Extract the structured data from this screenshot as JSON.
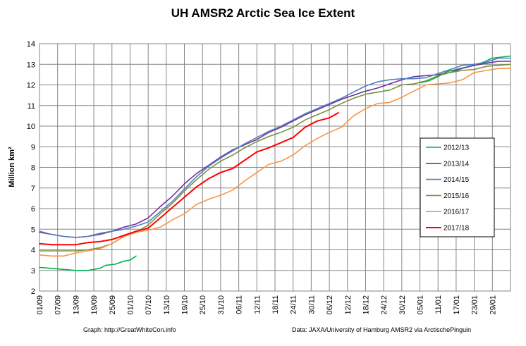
{
  "chart_data": {
    "type": "line",
    "title": "UH AMSR2 Arctic Sea Ice Extent",
    "ylabel": "Million km²",
    "xlabel": "",
    "ylim": [
      2,
      14
    ],
    "yticks": [
      2,
      3,
      4,
      5,
      6,
      7,
      8,
      9,
      10,
      11,
      12,
      13,
      14
    ],
    "xlim": [
      0,
      156
    ],
    "xtick_positions": [
      0,
      6,
      12,
      18,
      24,
      30,
      36,
      42,
      48,
      54,
      60,
      66,
      72,
      78,
      84,
      90,
      96,
      102,
      108,
      114,
      120,
      126,
      132,
      138,
      144,
      150,
      156
    ],
    "xtick_labels": [
      "01/09",
      "07/09",
      "13/09",
      "19/09",
      "25/09",
      "01/10",
      "07/10",
      "13/10",
      "19/10",
      "25/10",
      "31/10",
      "06/11",
      "12/11",
      "18/11",
      "24/11",
      "30/11",
      "06/12",
      "12/12",
      "18/12",
      "24/12",
      "30/12",
      "05/01",
      "11/01",
      "17/01",
      "23/01",
      "29/01",
      ""
    ],
    "grid": true,
    "legend_position": "right",
    "series": [
      {
        "name": "2012/13",
        "color": "#00b050",
        "points": [
          [
            0,
            3.15
          ],
          [
            4,
            3.1
          ],
          [
            8,
            3.05
          ],
          [
            12,
            3.0
          ],
          [
            16,
            3.0
          ],
          [
            20,
            3.1
          ],
          [
            22,
            3.25
          ],
          [
            25,
            3.3
          ],
          [
            28,
            3.45
          ],
          [
            30,
            3.5
          ],
          [
            32,
            3.7
          ],
          [
            null,
            null
          ],
          [
            126,
            12.1
          ],
          [
            129,
            12.2
          ],
          [
            132,
            12.4
          ],
          [
            135,
            12.65
          ],
          [
            138,
            12.75
          ],
          [
            141,
            12.85
          ],
          [
            144,
            12.95
          ],
          [
            147,
            13.1
          ],
          [
            150,
            13.3
          ],
          [
            153,
            13.35
          ],
          [
            156,
            13.4
          ]
        ]
      },
      {
        "name": "2013/14",
        "color": "#7030a0",
        "points": [
          [
            0,
            4.85
          ],
          [
            4,
            4.75
          ],
          [
            8,
            4.65
          ],
          [
            12,
            4.6
          ],
          [
            16,
            4.65
          ],
          [
            20,
            4.75
          ],
          [
            24,
            4.9
          ],
          [
            28,
            5.1
          ],
          [
            32,
            5.25
          ],
          [
            36,
            5.55
          ],
          [
            40,
            6.1
          ],
          [
            44,
            6.6
          ],
          [
            48,
            7.2
          ],
          [
            52,
            7.7
          ],
          [
            56,
            8.1
          ],
          [
            60,
            8.5
          ],
          [
            64,
            8.85
          ],
          [
            68,
            9.1
          ],
          [
            72,
            9.35
          ],
          [
            76,
            9.7
          ],
          [
            80,
            9.95
          ],
          [
            84,
            10.25
          ],
          [
            88,
            10.55
          ],
          [
            92,
            10.8
          ],
          [
            96,
            11.05
          ],
          [
            100,
            11.3
          ],
          [
            104,
            11.5
          ],
          [
            108,
            11.7
          ],
          [
            112,
            11.85
          ],
          [
            116,
            12.05
          ],
          [
            120,
            12.25
          ],
          [
            124,
            12.4
          ],
          [
            128,
            12.45
          ],
          [
            132,
            12.5
          ],
          [
            136,
            12.6
          ],
          [
            140,
            12.8
          ],
          [
            144,
            12.95
          ],
          [
            148,
            13.05
          ],
          [
            152,
            13.15
          ],
          [
            156,
            13.15
          ]
        ]
      },
      {
        "name": "2014/15",
        "color": "#4f81bd",
        "points": [
          [
            0,
            4.9
          ],
          [
            4,
            4.75
          ],
          [
            8,
            4.65
          ],
          [
            12,
            4.6
          ],
          [
            16,
            4.65
          ],
          [
            20,
            4.8
          ],
          [
            24,
            4.9
          ],
          [
            28,
            5.0
          ],
          [
            32,
            5.15
          ],
          [
            36,
            5.35
          ],
          [
            40,
            5.85
          ],
          [
            44,
            6.35
          ],
          [
            48,
            6.95
          ],
          [
            52,
            7.55
          ],
          [
            56,
            8.05
          ],
          [
            60,
            8.45
          ],
          [
            64,
            8.8
          ],
          [
            68,
            9.15
          ],
          [
            72,
            9.45
          ],
          [
            76,
            9.75
          ],
          [
            80,
            10.0
          ],
          [
            84,
            10.3
          ],
          [
            88,
            10.6
          ],
          [
            92,
            10.85
          ],
          [
            96,
            11.1
          ],
          [
            100,
            11.35
          ],
          [
            104,
            11.65
          ],
          [
            108,
            11.95
          ],
          [
            112,
            12.15
          ],
          [
            116,
            12.25
          ],
          [
            120,
            12.3
          ],
          [
            124,
            12.3
          ],
          [
            128,
            12.35
          ],
          [
            132,
            12.55
          ],
          [
            136,
            12.75
          ],
          [
            140,
            12.95
          ],
          [
            144,
            13.0
          ],
          [
            148,
            13.1
          ],
          [
            152,
            13.3
          ],
          [
            156,
            13.3
          ]
        ]
      },
      {
        "name": "2015/16",
        "color": "#77933c",
        "points": [
          [
            0,
            3.95
          ],
          [
            4,
            3.95
          ],
          [
            8,
            3.95
          ],
          [
            12,
            3.95
          ],
          [
            16,
            4.0
          ],
          [
            20,
            4.1
          ],
          [
            24,
            4.3
          ],
          [
            28,
            4.65
          ],
          [
            32,
            4.85
          ],
          [
            36,
            5.2
          ],
          [
            40,
            5.75
          ],
          [
            44,
            6.25
          ],
          [
            48,
            6.85
          ],
          [
            52,
            7.4
          ],
          [
            56,
            7.9
          ],
          [
            60,
            8.3
          ],
          [
            64,
            8.6
          ],
          [
            68,
            8.95
          ],
          [
            72,
            9.25
          ],
          [
            76,
            9.5
          ],
          [
            80,
            9.7
          ],
          [
            84,
            9.95
          ],
          [
            88,
            10.3
          ],
          [
            92,
            10.55
          ],
          [
            96,
            10.8
          ],
          [
            100,
            11.1
          ],
          [
            104,
            11.35
          ],
          [
            108,
            11.55
          ],
          [
            112,
            11.65
          ],
          [
            116,
            11.75
          ],
          [
            120,
            12.0
          ],
          [
            124,
            12.05
          ],
          [
            128,
            12.2
          ],
          [
            132,
            12.45
          ],
          [
            136,
            12.6
          ],
          [
            140,
            12.7
          ],
          [
            144,
            12.75
          ],
          [
            148,
            12.9
          ],
          [
            152,
            12.95
          ],
          [
            156,
            13.0
          ]
        ]
      },
      {
        "name": "2016/17",
        "color": "#f79646",
        "points": [
          [
            0,
            3.75
          ],
          [
            4,
            3.7
          ],
          [
            8,
            3.7
          ],
          [
            12,
            3.85
          ],
          [
            16,
            3.95
          ],
          [
            20,
            4.05
          ],
          [
            24,
            4.3
          ],
          [
            28,
            4.65
          ],
          [
            32,
            4.85
          ],
          [
            36,
            4.95
          ],
          [
            40,
            5.1
          ],
          [
            44,
            5.45
          ],
          [
            48,
            5.75
          ],
          [
            52,
            6.2
          ],
          [
            56,
            6.45
          ],
          [
            60,
            6.65
          ],
          [
            64,
            6.9
          ],
          [
            68,
            7.35
          ],
          [
            72,
            7.75
          ],
          [
            76,
            8.15
          ],
          [
            80,
            8.3
          ],
          [
            84,
            8.6
          ],
          [
            88,
            9.05
          ],
          [
            92,
            9.4
          ],
          [
            96,
            9.7
          ],
          [
            100,
            9.95
          ],
          [
            104,
            10.5
          ],
          [
            108,
            10.85
          ],
          [
            112,
            11.1
          ],
          [
            116,
            11.15
          ],
          [
            120,
            11.4
          ],
          [
            124,
            11.7
          ],
          [
            128,
            12.0
          ],
          [
            132,
            12.05
          ],
          [
            136,
            12.1
          ],
          [
            140,
            12.25
          ],
          [
            144,
            12.6
          ],
          [
            148,
            12.7
          ],
          [
            152,
            12.8
          ],
          [
            156,
            12.8
          ]
        ]
      },
      {
        "name": "2017/18",
        "color": "#ff0000",
        "points": [
          [
            0,
            4.3
          ],
          [
            4,
            4.25
          ],
          [
            8,
            4.25
          ],
          [
            12,
            4.25
          ],
          [
            16,
            4.35
          ],
          [
            20,
            4.4
          ],
          [
            24,
            4.5
          ],
          [
            28,
            4.7
          ],
          [
            32,
            4.9
          ],
          [
            36,
            5.05
          ],
          [
            40,
            5.55
          ],
          [
            44,
            6.05
          ],
          [
            48,
            6.55
          ],
          [
            52,
            7.05
          ],
          [
            56,
            7.45
          ],
          [
            60,
            7.75
          ],
          [
            64,
            7.95
          ],
          [
            68,
            8.35
          ],
          [
            72,
            8.75
          ],
          [
            76,
            8.95
          ],
          [
            80,
            9.2
          ],
          [
            84,
            9.45
          ],
          [
            88,
            9.95
          ],
          [
            92,
            10.25
          ],
          [
            96,
            10.4
          ],
          [
            99,
            10.65
          ]
        ]
      }
    ],
    "footer_left": "Graph: http://GreatWhiteCon.info",
    "footer_right": "Data: JAXA/University of Hamburg AMSR2 via ArctischePinguin"
  }
}
